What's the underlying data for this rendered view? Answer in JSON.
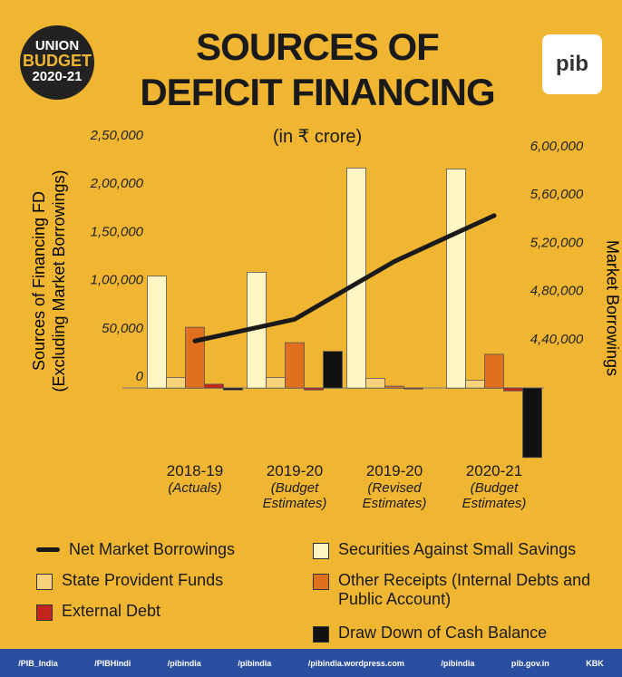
{
  "badge": [
    "UNION",
    "BUDGET",
    "2020-21"
  ],
  "logo": "pib",
  "chart_data": {
    "type": "bar",
    "title": [
      "SOURCES OF",
      "DEFICIT FINANCING"
    ],
    "subtitle": "(in ₹ crore)",
    "y_label": [
      "Sources of Financing FD",
      "(Excluding Market Borrowings)"
    ],
    "y2_label": "Market Borrowings",
    "categories": [
      "2018-19",
      "2019-20",
      "2019-20",
      "2020-21"
    ],
    "category_notes": [
      "(Actuals)",
      "(Budget Estimates)",
      "(Revised Estimates)",
      "(Budget Estimates)"
    ],
    "ylim": [
      -75000,
      250000
    ],
    "yticks": [
      0,
      {
        "value": 50000,
        "label": "50,000"
      },
      {
        "value": 100000,
        "label": "1,00,000"
      },
      {
        "value": 150000,
        "label": "1,50,000"
      },
      {
        "value": 200000,
        "label": "2,00,000"
      },
      {
        "value": 250000,
        "label": "2,50,000"
      }
    ],
    "y2lim": [
      340000,
      600000
    ],
    "y2ticks": [
      {
        "value": 440000,
        "label": "4,40,000"
      },
      {
        "value": 480000,
        "label": "4,80,000"
      },
      {
        "value": 520000,
        "label": "5,20,000"
      },
      {
        "value": 560000,
        "label": "5,60,000"
      },
      {
        "value": 600000,
        "label": "6,00,000"
      }
    ],
    "series": [
      {
        "name": "Net Market Borrowings",
        "type": "line",
        "axis": "y2",
        "color": "#1a1a1a",
        "values": [
          439000,
          457000,
          505000,
          543000
        ]
      },
      {
        "name": "Securities Against Small Savings",
        "color": "#fff6c4",
        "values": [
          116000,
          120000,
          228000,
          227000
        ]
      },
      {
        "name": "State Provident Funds",
        "color": "#f7d27a",
        "values": [
          11000,
          11000,
          10000,
          8000
        ]
      },
      {
        "name": "Other Receipts (Internal Debts and Public Account)",
        "color": "#e0701e",
        "values": [
          63000,
          47000,
          2000,
          35000
        ]
      },
      {
        "name": "External Debt",
        "color": "#c4241a",
        "values": [
          4000,
          -2000,
          -1000,
          -3000
        ]
      },
      {
        "name": "Draw Down of Cash Balance",
        "color": "#111111",
        "values": [
          -2000,
          38000,
          0,
          -72000
        ]
      }
    ]
  },
  "footer": [
    "/PIB_India",
    "/PIBHindi",
    "/pibindia",
    "/pibindia",
    "/pibindia.wordpress.com",
    "/pibindia",
    "pib.gov.in",
    "KBK"
  ]
}
